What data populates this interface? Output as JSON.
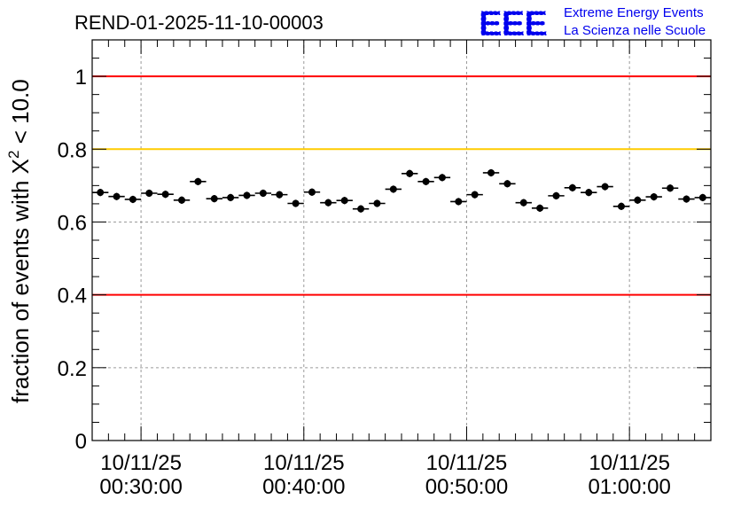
{
  "chart_data": {
    "type": "scatter",
    "title": "REND-01-2025-11-10-00003",
    "ylabel_text": "fraction of events with Χ",
    "ylabel_sup": "2",
    "ylabel_tail": " < 10.0",
    "xlabel": "",
    "ylim": [
      0,
      1.1
    ],
    "yticks": [
      0,
      0.2,
      0.4,
      0.6,
      0.8,
      1
    ],
    "ytick_labels": [
      "0",
      "0.2",
      "0.4",
      "0.6",
      "0.8",
      "1"
    ],
    "xlim_minutes": [
      23.5,
      61.5
    ],
    "xticks_minutes": [
      26.5,
      36.5,
      46.5,
      56.5
    ],
    "xtick_labels": [
      {
        "date": "10/11/25",
        "time": "00:30:00"
      },
      {
        "date": "10/11/25",
        "time": "00:40:00"
      },
      {
        "date": "10/11/25",
        "time": "00:50:00"
      },
      {
        "date": "10/11/25",
        "time": "01:00:00"
      }
    ],
    "grid": true,
    "reference_lines": [
      {
        "y": 1.0,
        "color": "#ff0000"
      },
      {
        "y": 0.8,
        "color": "#ffcc00"
      },
      {
        "y": 0.4,
        "color": "#ff0000"
      }
    ],
    "series": [
      {
        "name": "fraction",
        "color": "#000000",
        "x_minutes": [
          24,
          25,
          26,
          27,
          28,
          29,
          30,
          31,
          32,
          33,
          34,
          35,
          36,
          37,
          38,
          39,
          40,
          41,
          42,
          43,
          44,
          45,
          46,
          47,
          48,
          49,
          50,
          51,
          52,
          53,
          54,
          55,
          56,
          57,
          58,
          59,
          60,
          61
        ],
        "values": [
          0.681,
          0.67,
          0.662,
          0.679,
          0.676,
          0.66,
          0.711,
          0.664,
          0.667,
          0.673,
          0.679,
          0.675,
          0.651,
          0.682,
          0.653,
          0.659,
          0.636,
          0.651,
          0.69,
          0.733,
          0.711,
          0.722,
          0.656,
          0.675,
          0.735,
          0.705,
          0.653,
          0.638,
          0.672,
          0.694,
          0.681,
          0.697,
          0.643,
          0.66,
          0.669,
          0.693,
          0.663,
          0.667
        ],
        "errors": [
          0.01,
          0.01,
          0.01,
          0.01,
          0.01,
          0.01,
          0.01,
          0.01,
          0.01,
          0.01,
          0.01,
          0.01,
          0.01,
          0.01,
          0.01,
          0.01,
          0.01,
          0.01,
          0.01,
          0.01,
          0.01,
          0.01,
          0.01,
          0.01,
          0.01,
          0.01,
          0.01,
          0.01,
          0.01,
          0.01,
          0.01,
          0.01,
          0.01,
          0.01,
          0.01,
          0.01,
          0.01,
          0.01
        ],
        "bin_half_width_minutes": 0.5
      }
    ]
  },
  "logo": {
    "mark": "EEE",
    "line1": "Extreme Energy Events",
    "line2": "La Scienza nelle Scuole",
    "color": "#0000ee"
  }
}
